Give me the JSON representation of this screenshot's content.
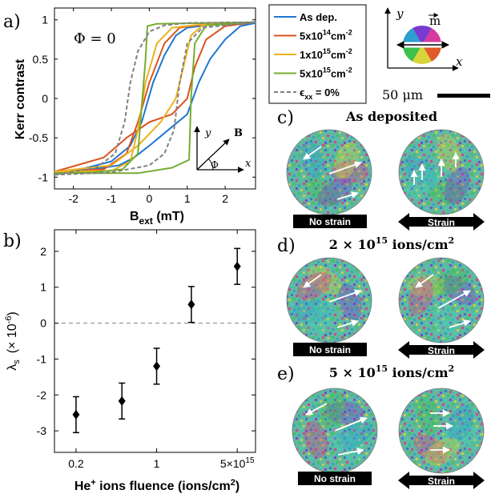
{
  "panels": {
    "a": {
      "label": "a)"
    },
    "b": {
      "label": "b)"
    },
    "c": {
      "label": "c)",
      "title": "As deposited"
    },
    "d": {
      "label": "d)",
      "title_prefix": "2 × 10",
      "title_exp": "15",
      "title_suffix": " ions/cm",
      "title_unit_exp": "2"
    },
    "e": {
      "label": "e)",
      "title_prefix": "5 × 10",
      "title_exp": "15",
      "title_suffix": " ions/cm",
      "title_unit_exp": "2"
    }
  },
  "phi_annotation": "Φ = 0",
  "inset_axes": {
    "y": "y",
    "x": "x",
    "b": "B",
    "phi": "Φ"
  },
  "legend": [
    {
      "label": "As dep.",
      "color": "#1f77d0",
      "style": "solid"
    },
    {
      "label": "5x10",
      "exp": "14",
      "unit": "cm",
      "unit_exp": "-2",
      "color": "#d9531e",
      "style": "solid"
    },
    {
      "label": "1x10",
      "exp": "15",
      "unit": "cm",
      "unit_exp": "-2",
      "color": "#edb120",
      "style": "solid"
    },
    {
      "label": "5x10",
      "exp": "15",
      "unit": "cm",
      "unit_exp": "-2",
      "color": "#77ac30",
      "style": "solid"
    },
    {
      "label": "ϵ",
      "sub": "xx",
      "suffix": " = 0%",
      "color": "#808080",
      "style": "dashed"
    }
  ],
  "colorwheel": {
    "y": "y",
    "x": "x",
    "m": "m"
  },
  "scale_bar": {
    "label": "50 μm"
  },
  "images": {
    "no_strain": "No strain",
    "strain": "Strain"
  },
  "chart_data": [
    {
      "type": "line",
      "title": "",
      "xlabel": "B",
      "xlabel_sub": "ext",
      "xlabel_unit": " (mT)",
      "ylabel": "Kerr contrast",
      "xlim": [
        -2.5,
        2.8
      ],
      "ylim": [
        -1.15,
        1.15
      ],
      "xticks": [
        -2,
        -1,
        0,
        1,
        2
      ],
      "yticks": [
        -1,
        -0.5,
        0,
        0.5,
        1
      ],
      "ytick_labels": [
        "-1",
        "-0.5",
        "0",
        "0.5",
        "1"
      ],
      "series": [
        {
          "name": "As dep.",
          "color": "#1f77d0",
          "dash": "",
          "upper": [
            [
              -2.5,
              -0.93
            ],
            [
              -1.5,
              -0.9
            ],
            [
              -0.8,
              -0.85
            ],
            [
              -0.4,
              -0.75
            ],
            [
              0,
              -0.6
            ],
            [
              0.5,
              -0.4
            ],
            [
              1.0,
              -0.2
            ],
            [
              1.3,
              0.2
            ],
            [
              1.6,
              0.5
            ],
            [
              2.0,
              0.75
            ],
            [
              2.4,
              0.92
            ],
            [
              2.8,
              0.96
            ]
          ],
          "lower": [
            [
              2.8,
              0.96
            ],
            [
              2.2,
              0.95
            ],
            [
              1.5,
              0.93
            ],
            [
              1.0,
              0.9
            ],
            [
              0.7,
              0.8
            ],
            [
              0.4,
              0.55
            ],
            [
              0.1,
              0.2
            ],
            [
              -0.2,
              -0.3
            ],
            [
              -0.5,
              -0.6
            ],
            [
              -1.0,
              -0.8
            ],
            [
              -1.8,
              -0.9
            ],
            [
              -2.5,
              -0.93
            ]
          ]
        },
        {
          "name": "5x10^14",
          "color": "#d9531e",
          "dash": "",
          "upper": [
            [
              -2.5,
              -0.93
            ],
            [
              -1.2,
              -0.75
            ],
            [
              -0.6,
              -0.5
            ],
            [
              0,
              -0.3
            ],
            [
              0.6,
              -0.2
            ],
            [
              1.0,
              0.0
            ],
            [
              1.2,
              0.4
            ],
            [
              1.5,
              0.75
            ],
            [
              2.0,
              0.92
            ],
            [
              2.8,
              0.97
            ]
          ],
          "lower": [
            [
              2.8,
              0.97
            ],
            [
              1.5,
              0.95
            ],
            [
              0.8,
              0.9
            ],
            [
              0.4,
              0.7
            ],
            [
              0.0,
              0.2
            ],
            [
              -0.3,
              -0.3
            ],
            [
              -0.6,
              -0.7
            ],
            [
              -1.2,
              -0.9
            ],
            [
              -2.5,
              -0.93
            ]
          ]
        },
        {
          "name": "1x10^15",
          "color": "#edb120",
          "dash": "",
          "upper": [
            [
              -2.5,
              -0.93
            ],
            [
              -1.0,
              -0.85
            ],
            [
              -0.3,
              -0.6
            ],
            [
              0.3,
              -0.3
            ],
            [
              0.7,
              0.0
            ],
            [
              0.9,
              0.4
            ],
            [
              1.1,
              0.8
            ],
            [
              1.4,
              0.93
            ],
            [
              2.8,
              0.97
            ]
          ],
          "lower": [
            [
              2.8,
              0.97
            ],
            [
              1.5,
              0.95
            ],
            [
              0.6,
              0.9
            ],
            [
              0.2,
              0.7
            ],
            [
              -0.1,
              0.2
            ],
            [
              -0.3,
              -0.4
            ],
            [
              -0.5,
              -0.8
            ],
            [
              -1.0,
              -0.92
            ],
            [
              -2.5,
              -0.93
            ]
          ]
        },
        {
          "name": "5x10^15",
          "color": "#77ac30",
          "dash": "",
          "upper": [
            [
              -2.5,
              -0.95
            ],
            [
              -0.3,
              -0.95
            ],
            [
              0.6,
              -0.88
            ],
            [
              1.05,
              -0.78
            ],
            [
              1.1,
              0.0
            ],
            [
              1.2,
              0.7
            ],
            [
              1.5,
              0.93
            ],
            [
              2.8,
              0.97
            ]
          ],
          "lower": [
            [
              2.8,
              0.97
            ],
            [
              0.2,
              0.95
            ],
            [
              -0.05,
              0.92
            ],
            [
              -0.1,
              0.5
            ],
            [
              -0.2,
              -0.1
            ],
            [
              -0.3,
              -0.7
            ],
            [
              -0.7,
              -0.9
            ],
            [
              -1.5,
              -0.94
            ],
            [
              -2.5,
              -0.95
            ]
          ]
        },
        {
          "name": "exx = 0%",
          "color": "#808080",
          "dash": "5,3",
          "upper": [
            [
              -2.5,
              -0.97
            ],
            [
              -1.0,
              -0.94
            ],
            [
              0,
              -0.85
            ],
            [
              0.4,
              -0.7
            ],
            [
              0.65,
              -0.4
            ],
            [
              0.8,
              0.2
            ],
            [
              1.0,
              0.7
            ],
            [
              1.4,
              0.9
            ],
            [
              2.8,
              0.97
            ]
          ],
          "lower": [
            [
              2.8,
              0.97
            ],
            [
              1.0,
              0.96
            ],
            [
              0.4,
              0.93
            ],
            [
              0.0,
              0.85
            ],
            [
              -0.3,
              0.6
            ],
            [
              -0.5,
              0.2
            ],
            [
              -0.65,
              -0.3
            ],
            [
              -0.9,
              -0.7
            ],
            [
              -1.4,
              -0.88
            ],
            [
              -2.5,
              -0.97
            ]
          ]
        }
      ]
    },
    {
      "type": "scatter",
      "title": "",
      "xlabel": "He",
      "xlabel_sup": "+",
      "xlabel_rest": " ions fluence (ions/cm",
      "xlabel_unit_exp": "2",
      "xlabel_close": ")",
      "ylabel": "λ",
      "ylabel_sub": "s",
      "ylabel_unit": "(× 10",
      "ylabel_unit_exp": "-6",
      "ylabel_close": ")",
      "xscale": "log",
      "xlim": [
        0.13,
        7.2
      ],
      "ylim": [
        -3.6,
        2.6
      ],
      "xticks": [
        0.2,
        1,
        5
      ],
      "xtick_labels": [
        "0.2",
        "1",
        "5×10"
      ],
      "xtick_last_exp": "15",
      "yticks": [
        -3,
        -2,
        -1,
        0,
        1,
        2
      ],
      "ytick_labels": [
        "-3",
        "-2",
        "-1",
        "0",
        "1",
        "2"
      ],
      "reference_line": 0,
      "points": [
        {
          "x": 0.2,
          "y": -2.55,
          "err": 0.5
        },
        {
          "x": 0.5,
          "y": -2.17,
          "err": 0.5
        },
        {
          "x": 1.0,
          "y": -1.2,
          "err": 0.5
        },
        {
          "x": 2.0,
          "y": 0.52,
          "err": 0.5
        },
        {
          "x": 5.0,
          "y": 1.58,
          "err": 0.5
        }
      ]
    }
  ]
}
